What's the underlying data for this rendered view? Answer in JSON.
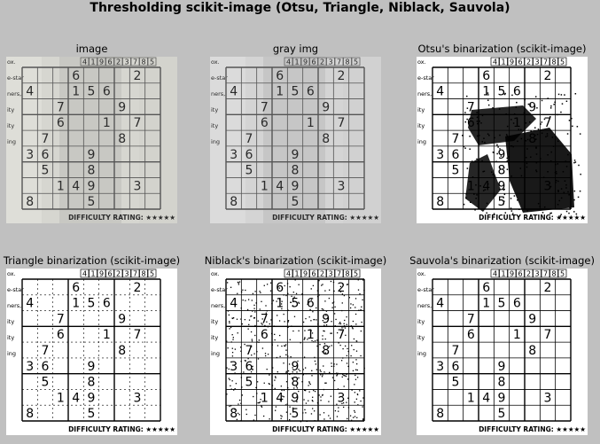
{
  "figure": {
    "title": "Thresholding scikit-image (Otsu, Triangle, Niblack, Sauvola)"
  },
  "panels": [
    {
      "title": "image",
      "style": "photo"
    },
    {
      "title": "gray img",
      "style": "gray"
    },
    {
      "title": "Otsu's binarization (scikit-image)",
      "style": "otsu"
    },
    {
      "title": "Triangle binarization (scikit-image)",
      "style": "triangle"
    },
    {
      "title": "Niblack's binarization (scikit-image)",
      "style": "niblack"
    },
    {
      "title": "Sauvola's binarization (scikit-image)",
      "style": "sauvola"
    }
  ],
  "sudoku": {
    "header_digits": [
      "4",
      "1",
      "9",
      "6",
      "2",
      "3",
      "7",
      "8",
      "5"
    ],
    "margin_text": [
      "ox.",
      "e-star",
      "ners,",
      "ity",
      "ity",
      "ing"
    ],
    "cells": [
      {
        "r": 0,
        "c": 3,
        "d": "6"
      },
      {
        "r": 0,
        "c": 7,
        "d": "2"
      },
      {
        "r": 1,
        "c": 0,
        "d": "4"
      },
      {
        "r": 1,
        "c": 3,
        "d": "1"
      },
      {
        "r": 1,
        "c": 4,
        "d": "5"
      },
      {
        "r": 1,
        "c": 5,
        "d": "6"
      },
      {
        "r": 2,
        "c": 2,
        "d": "7"
      },
      {
        "r": 2,
        "c": 6,
        "d": "9"
      },
      {
        "r": 3,
        "c": 2,
        "d": "6"
      },
      {
        "r": 3,
        "c": 5,
        "d": "1"
      },
      {
        "r": 3,
        "c": 7,
        "d": "7"
      },
      {
        "r": 4,
        "c": 1,
        "d": "7"
      },
      {
        "r": 4,
        "c": 6,
        "d": "8"
      },
      {
        "r": 5,
        "c": 0,
        "d": "3"
      },
      {
        "r": 5,
        "c": 1,
        "d": "6"
      },
      {
        "r": 5,
        "c": 4,
        "d": "9"
      },
      {
        "r": 6,
        "c": 1,
        "d": "5"
      },
      {
        "r": 6,
        "c": 4,
        "d": "8"
      },
      {
        "r": 7,
        "c": 2,
        "d": "1"
      },
      {
        "r": 7,
        "c": 3,
        "d": "4"
      },
      {
        "r": 7,
        "c": 4,
        "d": "9"
      },
      {
        "r": 7,
        "c": 7,
        "d": "3"
      },
      {
        "r": 8,
        "c": 0,
        "d": "8"
      },
      {
        "r": 8,
        "c": 4,
        "d": "5"
      }
    ],
    "footer": "DIFFICULTY RATING: ★★★★★"
  }
}
